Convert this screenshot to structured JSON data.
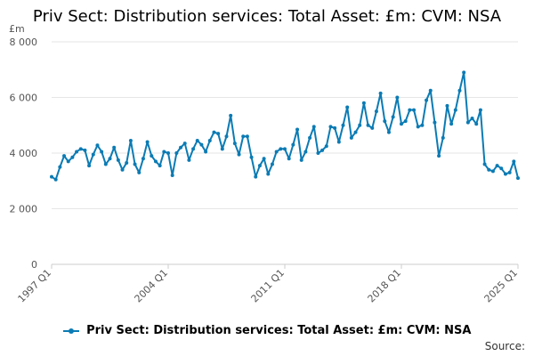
{
  "title": "Priv Sect: Distribution services: Total Asset: £m: CVM: NSA",
  "source_label": "Source:",
  "colors": {
    "series": "#0b7bb4",
    "grid": "#e6e6e6",
    "axis": "#cccccc"
  },
  "chart_data": {
    "type": "line",
    "title": "Priv Sect: Distribution services: Total Asset: £m: CVM: NSA",
    "unit": "£m",
    "xlabel": "",
    "ylabel": "",
    "ylim": [
      0,
      8000
    ],
    "y_ticks": [
      "0",
      "2 000",
      "4 000",
      "6 000",
      "8 000"
    ],
    "x_ticks": [
      "1997 Q1",
      "2004 Q1",
      "2011 Q1",
      "2018 Q1",
      "2025 Q1"
    ],
    "grid": true,
    "legend_position": "bottom",
    "series": [
      {
        "name": "Priv Sect: Distribution services: Total Asset: £m: CVM: NSA",
        "x_start": "1997 Q1",
        "frequency": "quarterly",
        "values": [
          3150,
          3050,
          3500,
          3900,
          3700,
          3850,
          4050,
          4150,
          4100,
          3550,
          3950,
          4280,
          4050,
          3600,
          3800,
          4200,
          3750,
          3400,
          3650,
          4450,
          3600,
          3300,
          3800,
          4400,
          3900,
          3700,
          3550,
          4050,
          4000,
          3200,
          4000,
          4200,
          4350,
          3750,
          4150,
          4450,
          4300,
          4050,
          4450,
          4750,
          4700,
          4150,
          4600,
          5350,
          4350,
          3950,
          4600,
          4600,
          3850,
          3150,
          3550,
          3800,
          3250,
          3600,
          4050,
          4150,
          4150,
          3800,
          4300,
          4850,
          3750,
          4050,
          4550,
          4950,
          4000,
          4100,
          4250,
          4950,
          4900,
          4400,
          5000,
          5650,
          4550,
          4750,
          5000,
          5800,
          5000,
          4900,
          5500,
          6150,
          5150,
          4750,
          5300,
          6000,
          5050,
          5150,
          5550,
          5550,
          4950,
          5000,
          5900,
          6250,
          5100,
          3900,
          4550,
          5700,
          5050,
          5550,
          6250,
          6900,
          5100,
          5250,
          5050,
          5550,
          3600,
          3400,
          3350,
          3550,
          3450,
          3250,
          3300,
          3700,
          3100
        ]
      }
    ]
  }
}
